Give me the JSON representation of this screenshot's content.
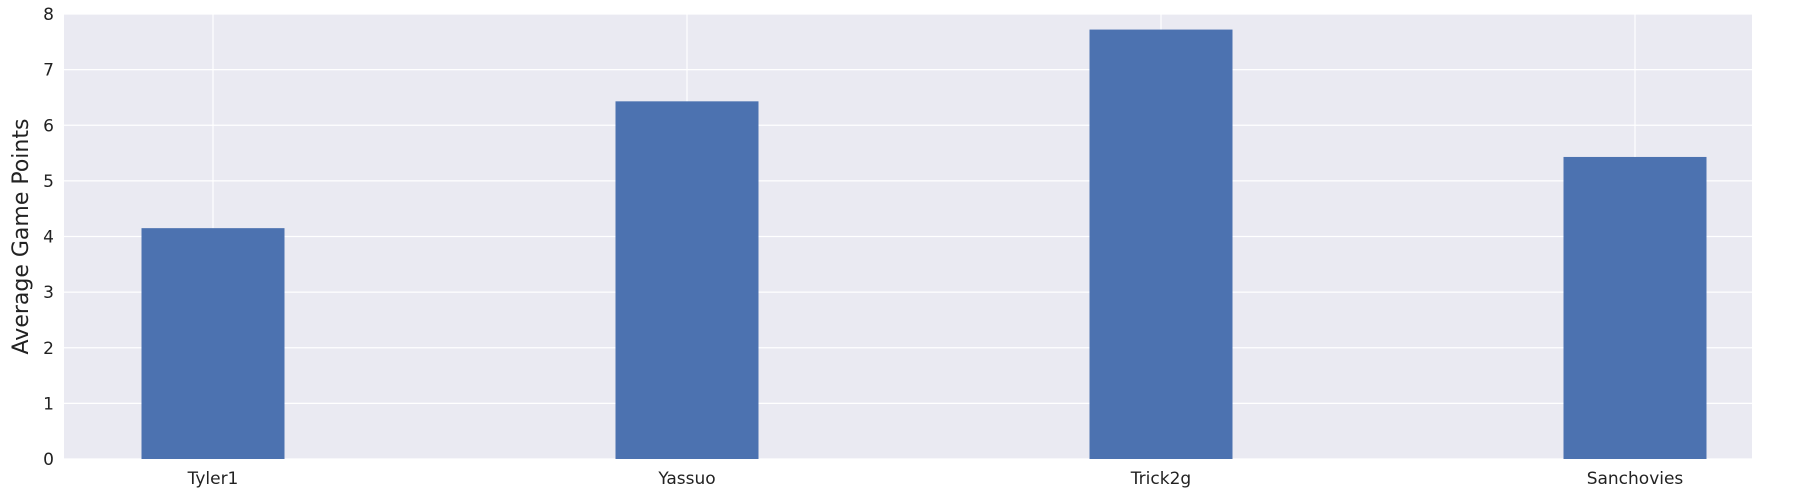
{
  "chart_data": {
    "type": "bar",
    "categories": [
      "Tyler1",
      "Yassuo",
      "Trick2g",
      "Sanchovies"
    ],
    "values": [
      4.15,
      6.43,
      7.72,
      5.43
    ],
    "xlabel": "",
    "ylabel": "Average Game Points",
    "ylim": [
      0,
      8
    ],
    "yticks": [
      "0",
      "1",
      "2",
      "3",
      "4",
      "5",
      "6",
      "7",
      "8"
    ],
    "grid": true,
    "bar_color": "#4c72b0",
    "background_color": "#eaeaf2",
    "grid_color": "#ffffff"
  }
}
